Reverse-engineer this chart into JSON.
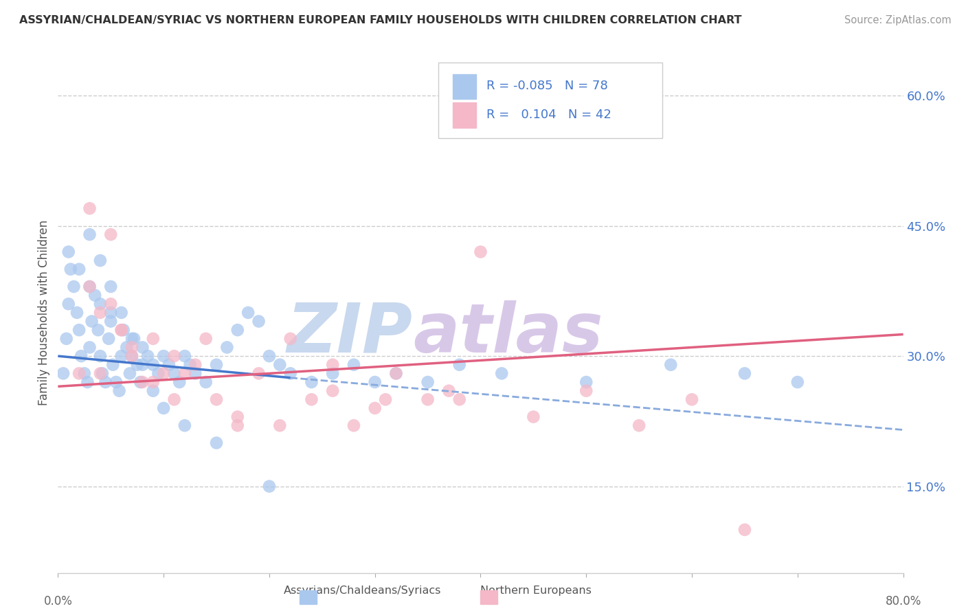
{
  "title": "ASSYRIAN/CHALDEAN/SYRIAC VS NORTHERN EUROPEAN FAMILY HOUSEHOLDS WITH CHILDREN CORRELATION CHART",
  "source": "Source: ZipAtlas.com",
  "ylabel": "Family Households with Children",
  "xlim": [
    0.0,
    80.0
  ],
  "ylim": [
    5.0,
    65.0
  ],
  "yticks": [
    15.0,
    30.0,
    45.0,
    60.0
  ],
  "xticks": [
    0.0,
    10.0,
    20.0,
    30.0,
    40.0,
    50.0,
    60.0,
    70.0,
    80.0
  ],
  "color_blue": "#aac8ee",
  "color_pink": "#f4b8c8",
  "color_blue_line": "#4477cc",
  "color_pink_line": "#e06080",
  "color_blue_dash": "#88aadd",
  "watermark_zip": "ZIP",
  "watermark_atlas": "atlas",
  "watermark_color_zip": "#c8d8ee",
  "watermark_color_atlas": "#d8c8e8",
  "blue_trend_x0": 0.0,
  "blue_trend_x1": 22.0,
  "blue_trend_y0": 30.0,
  "blue_trend_y1": 27.5,
  "pink_trend_x0": 0.0,
  "pink_trend_x1": 80.0,
  "pink_trend_y0": 26.5,
  "pink_trend_y1": 32.5,
  "blue_dash_x0": 22.0,
  "blue_dash_x1": 80.0,
  "blue_dash_y0": 27.5,
  "blue_dash_y1": 21.5,
  "blue_scatter_x": [
    0.5,
    0.8,
    1.0,
    1.2,
    1.5,
    1.8,
    2.0,
    2.2,
    2.5,
    2.8,
    3.0,
    3.2,
    3.5,
    3.8,
    4.0,
    4.2,
    4.5,
    4.8,
    5.0,
    5.2,
    5.5,
    5.8,
    6.0,
    6.2,
    6.5,
    6.8,
    7.0,
    7.2,
    7.5,
    7.8,
    8.0,
    8.5,
    9.0,
    9.5,
    10.0,
    10.5,
    11.0,
    11.5,
    12.0,
    12.5,
    13.0,
    14.0,
    15.0,
    16.0,
    17.0,
    18.0,
    19.0,
    20.0,
    21.0,
    22.0,
    24.0,
    26.0,
    28.0,
    30.0,
    32.0,
    35.0,
    38.0,
    42.0,
    50.0,
    58.0,
    65.0,
    70.0,
    1.0,
    2.0,
    3.0,
    4.0,
    5.0,
    3.0,
    4.0,
    5.0,
    6.0,
    7.0,
    8.0,
    9.0,
    10.0,
    12.0,
    15.0,
    20.0
  ],
  "blue_scatter_y": [
    28,
    32,
    36,
    40,
    38,
    35,
    33,
    30,
    28,
    27,
    31,
    34,
    37,
    33,
    30,
    28,
    27,
    32,
    35,
    29,
    27,
    26,
    30,
    33,
    31,
    28,
    30,
    32,
    29,
    27,
    31,
    30,
    29,
    28,
    30,
    29,
    28,
    27,
    30,
    29,
    28,
    27,
    29,
    31,
    33,
    35,
    34,
    30,
    29,
    28,
    27,
    28,
    29,
    27,
    28,
    27,
    29,
    28,
    27,
    29,
    28,
    27,
    42,
    40,
    38,
    36,
    34,
    44,
    41,
    38,
    35,
    32,
    29,
    26,
    24,
    22,
    20,
    15
  ],
  "pink_scatter_x": [
    2,
    3,
    4,
    5,
    6,
    7,
    8,
    9,
    10,
    11,
    12,
    13,
    15,
    17,
    19,
    22,
    24,
    26,
    28,
    30,
    32,
    35,
    38,
    40,
    45,
    50,
    55,
    60,
    65,
    3,
    5,
    7,
    9,
    11,
    14,
    17,
    21,
    26,
    31,
    37,
    4,
    6
  ],
  "pink_scatter_y": [
    28,
    47,
    35,
    44,
    33,
    31,
    27,
    32,
    28,
    30,
    28,
    29,
    25,
    22,
    28,
    32,
    25,
    26,
    22,
    24,
    28,
    25,
    25,
    42,
    23,
    26,
    22,
    25,
    10,
    38,
    36,
    30,
    27,
    25,
    32,
    23,
    22,
    29,
    25,
    26,
    28,
    33
  ]
}
